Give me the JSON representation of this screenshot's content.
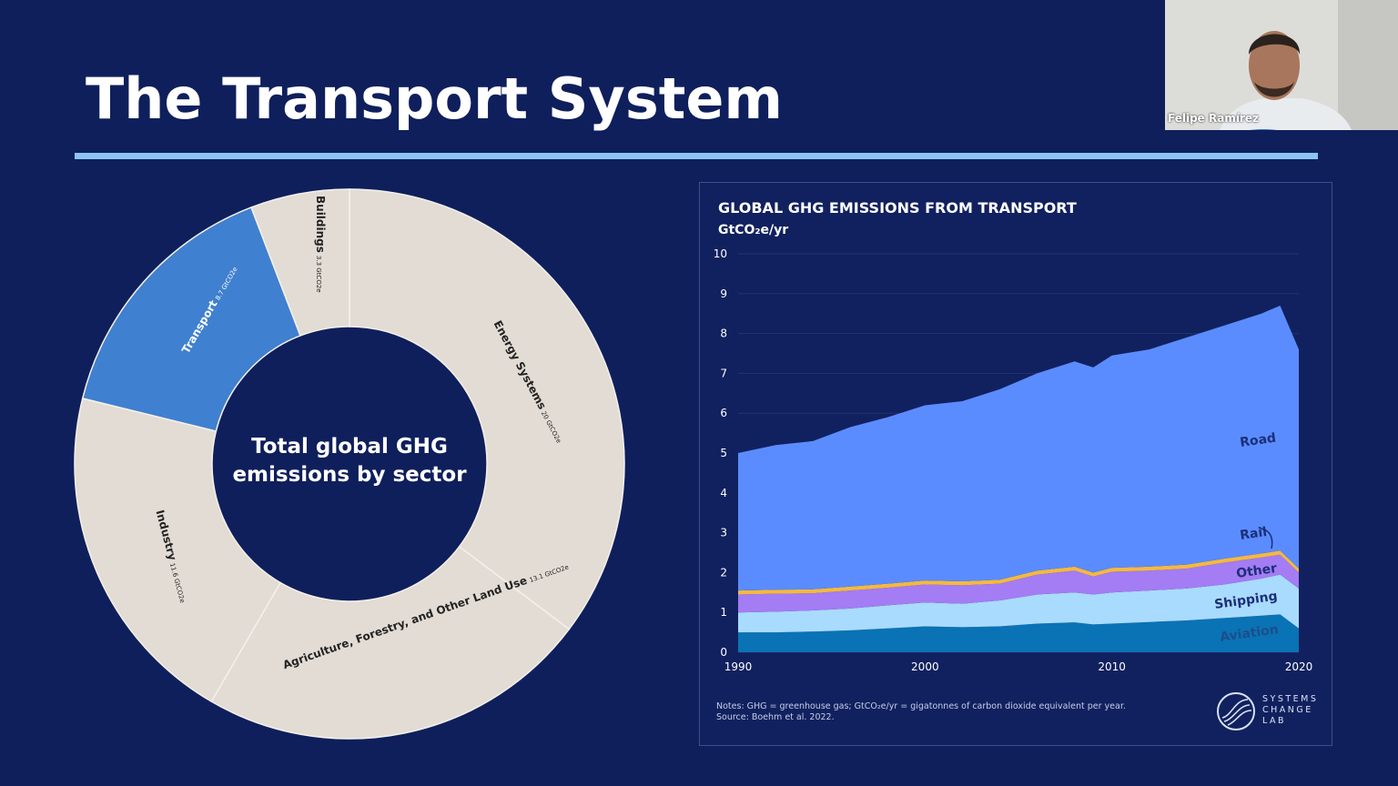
{
  "slide": {
    "title": "The Transport System",
    "accent_rule_color": "#8cc4f2",
    "background_color": "#0f1f5c"
  },
  "webcam": {
    "participant_name": "Felipe Ramírez"
  },
  "chart_data": [
    {
      "type": "pie",
      "variant": "donut",
      "center_label_line1": "Total global GHG",
      "center_label_line2": "emissions by sector",
      "unit": "GtCO2e",
      "slices": [
        {
          "label": "Energy Systems",
          "value": 20,
          "value_label": "20 GtCO2e",
          "color": "#e2dcd4"
        },
        {
          "label": "Agriculture, Forestry, and Other Land Use",
          "value": 13.1,
          "value_label": "13.1 GtCO2e",
          "color": "#e2dcd4"
        },
        {
          "label": "Industry",
          "value": 11.6,
          "value_label": "11.6 GtCO2e",
          "color": "#e2dcd4"
        },
        {
          "label": "Transport",
          "value": 8.7,
          "value_label": "8.7 GtCO2e",
          "color": "#3f80d0",
          "highlighted": true
        },
        {
          "label": "Buildings",
          "value": 3.3,
          "value_label": "3.3 GtCO2e",
          "color": "#e2dcd4"
        }
      ]
    },
    {
      "type": "area",
      "stacked": true,
      "title": "GLOBAL GHG EMISSIONS FROM TRANSPORT",
      "ylabel": "GtCO₂e/yr",
      "ylim": [
        0,
        10
      ],
      "yticks": [
        "0",
        "1",
        "2",
        "3",
        "4",
        "5",
        "6",
        "7",
        "8",
        "9",
        "10"
      ],
      "xlim": [
        1990,
        2020
      ],
      "xticks": [
        "1990",
        "2000",
        "2010",
        "2020"
      ],
      "grid": true,
      "x": [
        1990,
        1992,
        1994,
        1996,
        1998,
        2000,
        2002,
        2004,
        2006,
        2008,
        2009,
        2010,
        2012,
        2014,
        2016,
        2018,
        2019,
        2020
      ],
      "series": [
        {
          "name": "Aviation",
          "color": "#0a73b5",
          "values": [
            0.5,
            0.5,
            0.52,
            0.55,
            0.6,
            0.65,
            0.63,
            0.65,
            0.72,
            0.75,
            0.7,
            0.72,
            0.76,
            0.8,
            0.86,
            0.92,
            0.95,
            0.6
          ]
        },
        {
          "name": "Shipping",
          "color": "#a9dbff",
          "values": [
            0.5,
            0.52,
            0.53,
            0.55,
            0.58,
            0.6,
            0.59,
            0.65,
            0.73,
            0.75,
            0.75,
            0.78,
            0.79,
            0.8,
            0.84,
            0.93,
            1.0,
            1.0
          ]
        },
        {
          "name": "Other",
          "color": "#a47cf4",
          "values": [
            0.45,
            0.45,
            0.43,
            0.45,
            0.44,
            0.45,
            0.46,
            0.42,
            0.5,
            0.55,
            0.45,
            0.52,
            0.5,
            0.5,
            0.55,
            0.53,
            0.5,
            0.4
          ]
        },
        {
          "name": "Rail",
          "color": "#f4b942",
          "values": [
            0.1,
            0.1,
            0.1,
            0.1,
            0.1,
            0.1,
            0.1,
            0.1,
            0.1,
            0.1,
            0.1,
            0.1,
            0.1,
            0.1,
            0.1,
            0.1,
            0.1,
            0.1
          ]
        },
        {
          "name": "Road",
          "color": "#5b8cff",
          "values": [
            3.45,
            3.63,
            3.72,
            4.0,
            4.18,
            4.4,
            4.52,
            4.78,
            4.95,
            5.15,
            5.15,
            5.33,
            5.45,
            5.7,
            5.85,
            6.02,
            6.15,
            5.5
          ]
        }
      ],
      "notes": "Notes: GHG = greenhouse gas; GtCO₂e/yr = gigatonnes of carbon dioxide equivalent per year.",
      "source": "Source: Boehm et al. 2022.",
      "logo_text": [
        "SYSTEMS",
        "CHANGE",
        "LAB"
      ]
    }
  ]
}
